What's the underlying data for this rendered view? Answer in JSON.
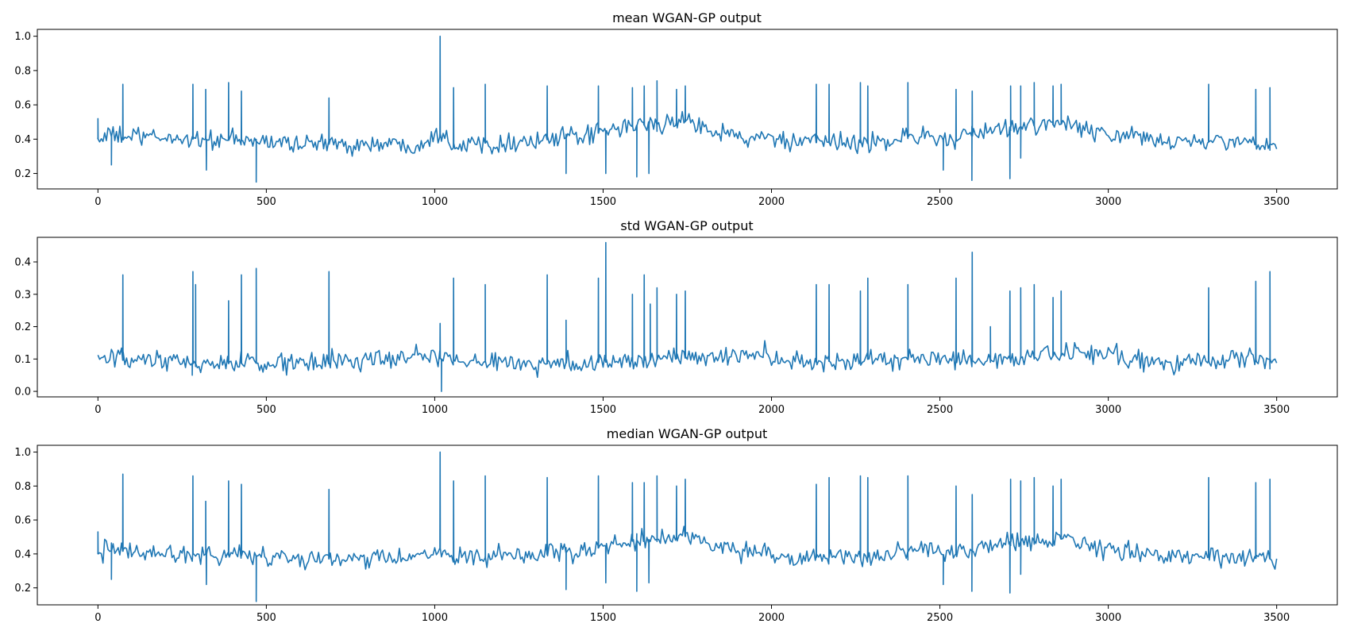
{
  "colors": {
    "series": "#1f77b4",
    "axes": "#000000",
    "background": "#ffffff"
  },
  "chart_data": [
    {
      "type": "line",
      "title": "mean WGAN-GP output",
      "xlabel": "",
      "ylabel": "",
      "xlim": [
        -180,
        3680
      ],
      "ylim": [
        0.11,
        1.04
      ],
      "xticks": [
        0,
        500,
        1000,
        1500,
        2000,
        2500,
        3000,
        3500
      ],
      "xtick_labels": [
        "0",
        "500",
        "1000",
        "1500",
        "2000",
        "2500",
        "3000",
        "3500"
      ],
      "yticks": [
        0.2,
        0.4,
        0.6,
        0.8,
        1.0
      ],
      "ytick_labels": [
        "0.2",
        "0.4",
        "0.6",
        "0.8",
        "1.0"
      ],
      "grid": false,
      "x_range": [
        0,
        3500
      ],
      "sample_step": 5,
      "noise_amplitude": 0.035,
      "baseline": [
        [
          0,
          0.4
        ],
        [
          20,
          0.42
        ],
        [
          300,
          0.4
        ],
        [
          700,
          0.37
        ],
        [
          950,
          0.37
        ],
        [
          990,
          0.41
        ],
        [
          1010,
          0.44
        ],
        [
          1040,
          0.4
        ],
        [
          1060,
          0.37
        ],
        [
          1300,
          0.39
        ],
        [
          1450,
          0.42
        ],
        [
          1520,
          0.45
        ],
        [
          1600,
          0.48
        ],
        [
          1700,
          0.49
        ],
        [
          1750,
          0.505
        ],
        [
          1800,
          0.48
        ],
        [
          1870,
          0.43
        ],
        [
          1930,
          0.4
        ],
        [
          1980,
          0.41
        ],
        [
          2050,
          0.38
        ],
        [
          2300,
          0.38
        ],
        [
          2400,
          0.41
        ],
        [
          2450,
          0.43
        ],
        [
          2520,
          0.39
        ],
        [
          2600,
          0.42
        ],
        [
          2700,
          0.47
        ],
        [
          2800,
          0.48
        ],
        [
          2880,
          0.49
        ],
        [
          2960,
          0.44
        ],
        [
          3050,
          0.41
        ],
        [
          3200,
          0.39
        ],
        [
          3500,
          0.37
        ]
      ],
      "spikes": [
        [
          0,
          0.52
        ],
        [
          74,
          0.72
        ],
        [
          282,
          0.72
        ],
        [
          320,
          0.69
        ],
        [
          388,
          0.73
        ],
        [
          426,
          0.68
        ],
        [
          686,
          0.64
        ],
        [
          1016,
          1.0
        ],
        [
          1056,
          0.7
        ],
        [
          1150,
          0.72
        ],
        [
          1334,
          0.71
        ],
        [
          1486,
          0.71
        ],
        [
          1587,
          0.7
        ],
        [
          1622,
          0.71
        ],
        [
          1660,
          0.74
        ],
        [
          1718,
          0.69
        ],
        [
          1744,
          0.71
        ],
        [
          2133,
          0.72
        ],
        [
          2171,
          0.72
        ],
        [
          2264,
          0.73
        ],
        [
          2286,
          0.71
        ],
        [
          2405,
          0.73
        ],
        [
          2548,
          0.69
        ],
        [
          2596,
          0.68
        ],
        [
          2710,
          0.71
        ],
        [
          2740,
          0.71
        ],
        [
          2780,
          0.73
        ],
        [
          2836,
          0.71
        ],
        [
          2860,
          0.72
        ],
        [
          3298,
          0.72
        ],
        [
          3438,
          0.69
        ],
        [
          3480,
          0.7
        ]
      ],
      "dips": [
        [
          40,
          0.25
        ],
        [
          322,
          0.22
        ],
        [
          470,
          0.15
        ],
        [
          1390,
          0.2
        ],
        [
          1508,
          0.2
        ],
        [
          1600,
          0.18
        ],
        [
          1636,
          0.2
        ],
        [
          2510,
          0.22
        ],
        [
          2595,
          0.16
        ],
        [
          2708,
          0.17
        ],
        [
          2740,
          0.29
        ]
      ]
    },
    {
      "type": "line",
      "title": "std WGAN-GP output",
      "xlabel": "",
      "ylabel": "",
      "xlim": [
        -180,
        3680
      ],
      "ylim": [
        -0.017,
        0.476
      ],
      "xticks": [
        0,
        500,
        1000,
        1500,
        2000,
        2500,
        3000,
        3500
      ],
      "xtick_labels": [
        "0",
        "500",
        "1000",
        "1500",
        "2000",
        "2500",
        "3000",
        "3500"
      ],
      "yticks": [
        0.0,
        0.1,
        0.2,
        0.3,
        0.4
      ],
      "ytick_labels": [
        "0.0",
        "0.1",
        "0.2",
        "0.3",
        "0.4"
      ],
      "grid": false,
      "x_range": [
        0,
        3500
      ],
      "sample_step": 5,
      "noise_amplitude": 0.02,
      "baseline": [
        [
          0,
          0.1
        ],
        [
          300,
          0.085
        ],
        [
          700,
          0.09
        ],
        [
          990,
          0.11
        ],
        [
          1020,
          0.1
        ],
        [
          1300,
          0.085
        ],
        [
          1500,
          0.09
        ],
        [
          1700,
          0.1
        ],
        [
          1980,
          0.12
        ],
        [
          2020,
          0.085
        ],
        [
          2300,
          0.1
        ],
        [
          2600,
          0.095
        ],
        [
          3020,
          0.12
        ],
        [
          3060,
          0.09
        ],
        [
          3500,
          0.1
        ]
      ],
      "spikes": [
        [
          74,
          0.36
        ],
        [
          282,
          0.37
        ],
        [
          290,
          0.33
        ],
        [
          388,
          0.28
        ],
        [
          426,
          0.36
        ],
        [
          470,
          0.38
        ],
        [
          686,
          0.37
        ],
        [
          1016,
          0.21
        ],
        [
          1056,
          0.35
        ],
        [
          1150,
          0.33
        ],
        [
          1334,
          0.36
        ],
        [
          1390,
          0.22
        ],
        [
          1486,
          0.35
        ],
        [
          1508,
          0.46
        ],
        [
          1587,
          0.3
        ],
        [
          1622,
          0.36
        ],
        [
          1640,
          0.27
        ],
        [
          1660,
          0.32
        ],
        [
          1718,
          0.3
        ],
        [
          1744,
          0.31
        ],
        [
          2133,
          0.33
        ],
        [
          2171,
          0.33
        ],
        [
          2264,
          0.31
        ],
        [
          2286,
          0.35
        ],
        [
          2405,
          0.33
        ],
        [
          2548,
          0.35
        ],
        [
          2596,
          0.43
        ],
        [
          2650,
          0.2
        ],
        [
          2708,
          0.31
        ],
        [
          2740,
          0.32
        ],
        [
          2780,
          0.33
        ],
        [
          2836,
          0.29
        ],
        [
          2860,
          0.31
        ],
        [
          3298,
          0.32
        ],
        [
          3438,
          0.34
        ],
        [
          3480,
          0.37
        ]
      ],
      "dips": [
        [
          1020,
          0.0
        ],
        [
          280,
          0.05
        ]
      ]
    },
    {
      "type": "line",
      "title": "median WGAN-GP output",
      "xlabel": "",
      "ylabel": "",
      "xlim": [
        -180,
        3680
      ],
      "ylim": [
        0.1,
        1.04
      ],
      "xticks": [
        0,
        500,
        1000,
        1500,
        2000,
        2500,
        3000,
        3500
      ],
      "xtick_labels": [
        "0",
        "500",
        "1000",
        "1500",
        "2000",
        "2500",
        "3000",
        "3500"
      ],
      "yticks": [
        0.2,
        0.4,
        0.6,
        0.8,
        1.0
      ],
      "ytick_labels": [
        "0.2",
        "0.4",
        "0.6",
        "0.8",
        "1.0"
      ],
      "grid": false,
      "x_range": [
        0,
        3500
      ],
      "sample_step": 5,
      "noise_amplitude": 0.035,
      "baseline": [
        [
          0,
          0.4
        ],
        [
          20,
          0.42
        ],
        [
          300,
          0.4
        ],
        [
          700,
          0.37
        ],
        [
          950,
          0.37
        ],
        [
          990,
          0.41
        ],
        [
          1010,
          0.44
        ],
        [
          1040,
          0.4
        ],
        [
          1060,
          0.37
        ],
        [
          1300,
          0.39
        ],
        [
          1450,
          0.42
        ],
        [
          1520,
          0.45
        ],
        [
          1600,
          0.48
        ],
        [
          1700,
          0.49
        ],
        [
          1750,
          0.505
        ],
        [
          1800,
          0.48
        ],
        [
          1870,
          0.43
        ],
        [
          1930,
          0.4
        ],
        [
          1980,
          0.41
        ],
        [
          2050,
          0.38
        ],
        [
          2300,
          0.38
        ],
        [
          2400,
          0.41
        ],
        [
          2450,
          0.43
        ],
        [
          2520,
          0.39
        ],
        [
          2600,
          0.42
        ],
        [
          2700,
          0.47
        ],
        [
          2800,
          0.48
        ],
        [
          2880,
          0.49
        ],
        [
          2960,
          0.44
        ],
        [
          3050,
          0.41
        ],
        [
          3200,
          0.39
        ],
        [
          3500,
          0.37
        ]
      ],
      "spikes": [
        [
          0,
          0.53
        ],
        [
          74,
          0.87
        ],
        [
          282,
          0.86
        ],
        [
          320,
          0.71
        ],
        [
          388,
          0.83
        ],
        [
          426,
          0.81
        ],
        [
          686,
          0.78
        ],
        [
          1016,
          1.0
        ],
        [
          1056,
          0.83
        ],
        [
          1150,
          0.86
        ],
        [
          1334,
          0.85
        ],
        [
          1486,
          0.86
        ],
        [
          1587,
          0.82
        ],
        [
          1622,
          0.82
        ],
        [
          1660,
          0.86
        ],
        [
          1718,
          0.8
        ],
        [
          1744,
          0.84
        ],
        [
          2133,
          0.81
        ],
        [
          2171,
          0.85
        ],
        [
          2264,
          0.86
        ],
        [
          2286,
          0.85
        ],
        [
          2405,
          0.86
        ],
        [
          2548,
          0.8
        ],
        [
          2596,
          0.75
        ],
        [
          2710,
          0.84
        ],
        [
          2740,
          0.83
        ],
        [
          2780,
          0.85
        ],
        [
          2836,
          0.8
        ],
        [
          2860,
          0.84
        ],
        [
          3298,
          0.85
        ],
        [
          3438,
          0.82
        ],
        [
          3480,
          0.84
        ]
      ],
      "dips": [
        [
          40,
          0.25
        ],
        [
          322,
          0.22
        ],
        [
          470,
          0.12
        ],
        [
          1390,
          0.19
        ],
        [
          1508,
          0.23
        ],
        [
          1600,
          0.18
        ],
        [
          1636,
          0.23
        ],
        [
          2510,
          0.22
        ],
        [
          2595,
          0.18
        ],
        [
          2708,
          0.17
        ],
        [
          2740,
          0.28
        ]
      ]
    }
  ]
}
